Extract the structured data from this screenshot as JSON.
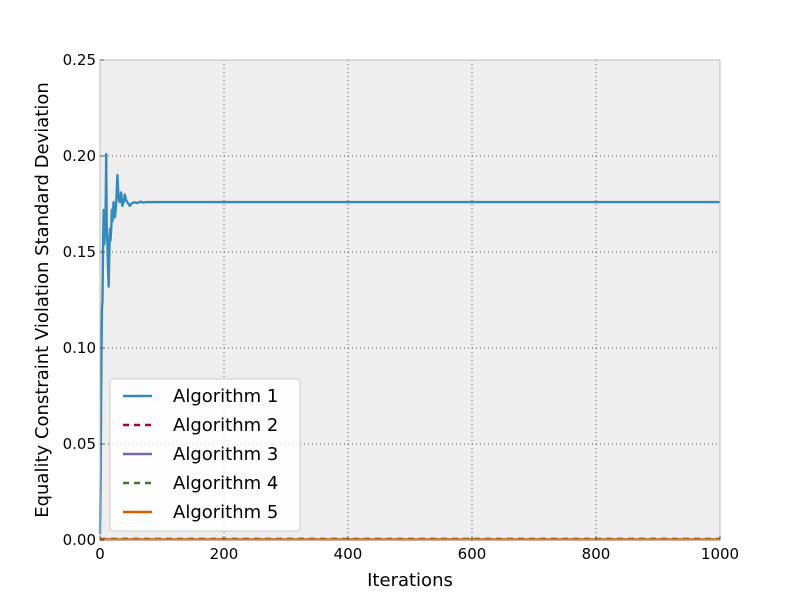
{
  "chart_data": {
    "type": "line",
    "xlabel": "Iterations",
    "ylabel": "Equality Constraint Violation Standard Deviation",
    "xlim": [
      0,
      1000
    ],
    "ylim": [
      0,
      0.25
    ],
    "xticks": [
      "0",
      "200",
      "400",
      "600",
      "800",
      "1000"
    ],
    "xtick_values": [
      0,
      200,
      400,
      600,
      800,
      1000
    ],
    "yticks": [
      "0.00",
      "0.05",
      "0.10",
      "0.15",
      "0.20",
      "0.25"
    ],
    "ytick_values": [
      0,
      0.05,
      0.1,
      0.15,
      0.2,
      0.25
    ],
    "grid": true,
    "legend_position": "lower-left",
    "series": [
      {
        "name": "Algorithm 1",
        "color": "#348abd",
        "dash": "solid",
        "x": [
          0,
          1,
          2,
          3,
          4,
          5,
          6,
          7,
          8,
          9,
          10,
          11,
          12,
          13,
          14,
          15,
          16,
          17,
          18,
          19,
          20,
          22,
          24,
          26,
          28,
          30,
          32,
          34,
          36,
          38,
          40,
          42,
          44,
          46,
          48,
          50,
          55,
          60,
          65,
          70,
          75,
          80,
          90,
          100,
          150,
          200,
          400,
          600,
          800,
          1000
        ],
        "y": [
          0.003,
          0.03,
          0.08,
          0.12,
          0.125,
          0.155,
          0.172,
          0.154,
          0.165,
          0.17,
          0.201,
          0.16,
          0.155,
          0.14,
          0.132,
          0.15,
          0.162,
          0.156,
          0.162,
          0.172,
          0.166,
          0.176,
          0.168,
          0.174,
          0.19,
          0.178,
          0.176,
          0.181,
          0.174,
          0.176,
          0.18,
          0.177,
          0.176,
          0.175,
          0.174,
          0.175,
          0.176,
          0.1755,
          0.1762,
          0.1758,
          0.176,
          0.176,
          0.176,
          0.176,
          0.176,
          0.176,
          0.176,
          0.176,
          0.176,
          0.176
        ]
      },
      {
        "name": "Algorithm 2",
        "color": "#a60628",
        "dash": "dashed",
        "x": [
          0,
          1000
        ],
        "y": [
          0.0005,
          0.0005
        ]
      },
      {
        "name": "Algorithm 3",
        "color": "#7a68a6",
        "dash": "solid",
        "x": [
          0,
          1000
        ],
        "y": [
          0.0003,
          0.0003
        ]
      },
      {
        "name": "Algorithm 4",
        "color": "#467821",
        "dash": "dashed",
        "x": [
          0,
          1000
        ],
        "y": [
          0.0004,
          0.0004
        ]
      },
      {
        "name": "Algorithm 5",
        "color": "#d55e00",
        "dash": "solid",
        "x": [
          0,
          1000
        ],
        "y": [
          0.0002,
          0.0002
        ]
      }
    ]
  }
}
